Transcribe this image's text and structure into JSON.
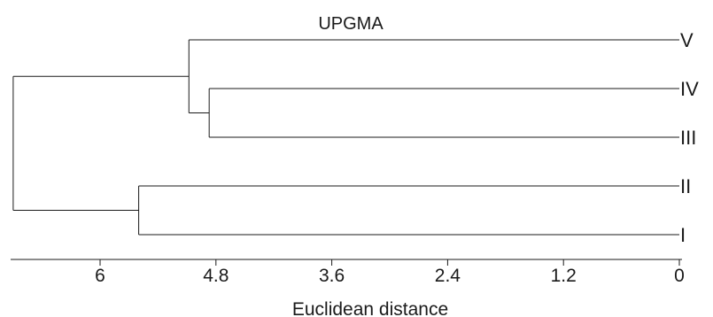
{
  "title": "UPGMA",
  "axis": {
    "label": "Euclidean distance",
    "ticks": [
      {
        "value": 6,
        "label": "6"
      },
      {
        "value": 4.8,
        "label": "4.8"
      },
      {
        "value": 3.6,
        "label": "3.6"
      },
      {
        "value": 2.4,
        "label": "2.4"
      },
      {
        "value": 1.2,
        "label": "1.2"
      },
      {
        "value": 0,
        "label": "0"
      }
    ],
    "range": [
      0,
      7.0
    ],
    "direction": "reversed"
  },
  "leaves": [
    "V",
    "IV",
    "III",
    "II",
    "I"
  ],
  "merges": [
    {
      "members": [
        "IV",
        "III"
      ],
      "height": 4.87
    },
    {
      "members": [
        "V",
        "IV",
        "III"
      ],
      "height": 5.08
    },
    {
      "members": [
        "II",
        "I"
      ],
      "height": 5.6
    },
    {
      "members": [
        "V",
        "IV",
        "III",
        "II",
        "I"
      ],
      "height": 6.9
    }
  ]
}
